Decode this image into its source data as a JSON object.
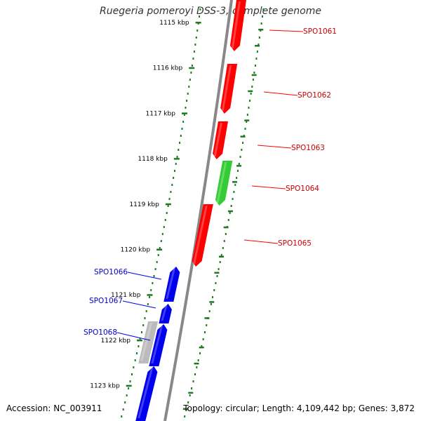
{
  "title": "Ruegeria pomeroyi DSS-3, complete genome",
  "footer": {
    "accession": "Accession: NC_003911",
    "topology": "Topology: circular; Length: 4,109,442 bp; Genes: 3,872"
  },
  "colors": {
    "backbone": "#888888",
    "ruler": "#1f7a1f",
    "forward_gene": "#ff0000",
    "forward_label": "#cc0000",
    "reverse_gene": "#0000ee",
    "reverse_label": "#0000cc",
    "rna_gene": "#33cc33",
    "pseudo_gene": "#bbbbbb"
  },
  "ruler": {
    "ticks": [
      "1115 kbp",
      "1116 kbp",
      "1117 kbp",
      "1118 kbp",
      "1119 kbp",
      "1120 kbp",
      "1121 kbp",
      "1122 kbp",
      "1123 kbp"
    ]
  },
  "genes": [
    {
      "id": "SPO1061",
      "label": "SPO1061",
      "strand": "+",
      "type": "cds"
    },
    {
      "id": "SPO1062",
      "label": "SPO1062",
      "strand": "+",
      "type": "cds"
    },
    {
      "id": "SPO1063",
      "label": "SPO1063",
      "strand": "+",
      "type": "cds"
    },
    {
      "id": "SPO1064",
      "label": "SPO1064",
      "strand": "+",
      "type": "rna"
    },
    {
      "id": "SPO1065",
      "label": "SPO1065",
      "strand": "+",
      "type": "cds"
    },
    {
      "id": "SPO1066",
      "label": "SPO1066",
      "strand": "-",
      "type": "cds"
    },
    {
      "id": "SPO1067",
      "label": "SPO1067",
      "strand": "-",
      "type": "cds"
    },
    {
      "id": "SPO1068",
      "label": "SPO1068",
      "strand": "-",
      "type": "pseudo"
    },
    {
      "id": "SPO1068b",
      "label": "",
      "strand": "-",
      "type": "cds"
    },
    {
      "id": "SPO1068c",
      "label": "",
      "strand": "-",
      "type": "cds"
    }
  ]
}
